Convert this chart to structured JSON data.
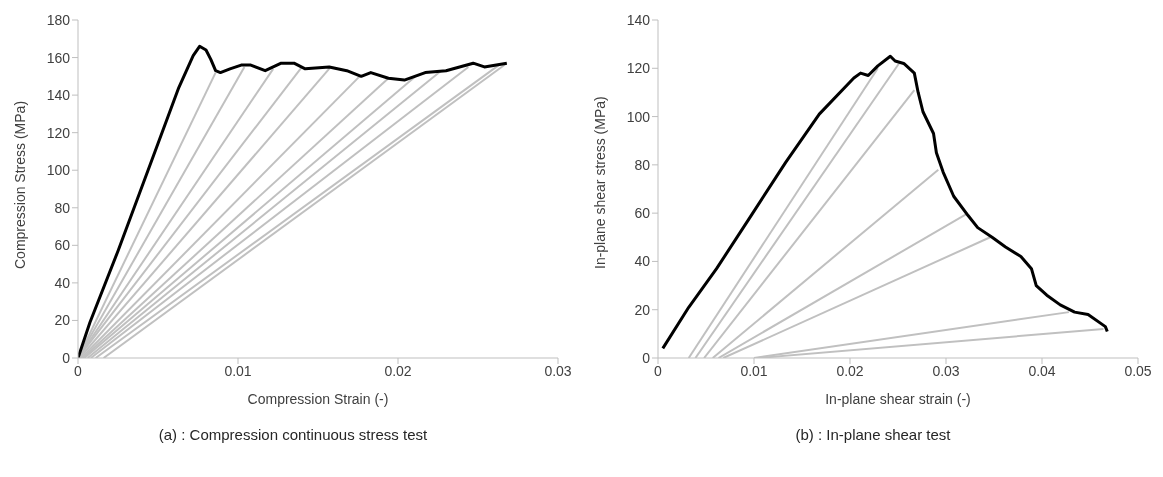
{
  "chart_data": [
    {
      "type": "line",
      "xlabel": "Compression Strain (-)",
      "ylabel": "Compression Stress (MPa)",
      "annotations": [
        "(a) : Compression continuous stress test"
      ],
      "xlim": [
        0,
        0.03
      ],
      "xticks": [
        0,
        0.01,
        0.02,
        0.03
      ],
      "ylim": [
        0,
        180
      ],
      "yticks": [
        0,
        20,
        40,
        60,
        80,
        100,
        120,
        140,
        160,
        180
      ],
      "grid": false,
      "marker": "none",
      "line_style": "solid",
      "series": [
        {
          "color": "#c0c0c0",
          "x": [
            0,
            0.0086
          ],
          "values": [
            0,
            152
          ]
        },
        {
          "color": "#c0c0c0",
          "x": [
            0,
            0.0104
          ],
          "values": [
            0,
            155
          ]
        },
        {
          "color": "#c0c0c0",
          "x": [
            0,
            0.0122
          ],
          "values": [
            0,
            154
          ]
        },
        {
          "color": "#c0c0c0",
          "x": [
            0,
            0.014
          ],
          "values": [
            0,
            155
          ]
        },
        {
          "color": "#c0c0c0",
          "x": [
            0.0001,
            0.0158
          ],
          "values": [
            0,
            155
          ]
        },
        {
          "color": "#c0c0c0",
          "x": [
            0.0002,
            0.0176
          ],
          "values": [
            0,
            150
          ]
        },
        {
          "color": "#c0c0c0",
          "x": [
            0.0003,
            0.0194
          ],
          "values": [
            0,
            149
          ]
        },
        {
          "color": "#c0c0c0",
          "x": [
            0.0004,
            0.0211
          ],
          "values": [
            0,
            150
          ]
        },
        {
          "color": "#c0c0c0",
          "x": [
            0.0006,
            0.0227
          ],
          "values": [
            0,
            153
          ]
        },
        {
          "color": "#c0c0c0",
          "x": [
            0.0008,
            0.0244
          ],
          "values": [
            0,
            155
          ]
        },
        {
          "color": "#c0c0c0",
          "x": [
            0.0011,
            0.0263
          ],
          "values": [
            0,
            156
          ]
        },
        {
          "color": "#c0c0c0",
          "x": [
            0.0016,
            0.0268
          ],
          "values": [
            0,
            157
          ]
        },
        {
          "color": "#000000",
          "x": [
            0,
            0.00075,
            0.0025,
            0.0046,
            0.0063,
            0.0072,
            0.0076,
            0.008,
            0.0083,
            0.0086,
            0.0089,
            0.0095,
            0.0102,
            0.0108,
            0.0117,
            0.0127,
            0.0135,
            0.0142,
            0.0157,
            0.0168,
            0.0177,
            0.0183,
            0.0194,
            0.0204,
            0.0217,
            0.023,
            0.0247,
            0.0254,
            0.0268
          ],
          "values": [
            0,
            19,
            57,
            105,
            144,
            161,
            166,
            164,
            159,
            153,
            152,
            154,
            156,
            156,
            153,
            157,
            157,
            154,
            155,
            153,
            150,
            152,
            149,
            148,
            152,
            153,
            157,
            155,
            157
          ]
        }
      ]
    },
    {
      "type": "line",
      "xlabel": "In-plane shear strain (-)",
      "ylabel": "In-plane shear stress (MPa)",
      "annotations": [
        "(b) : In-plane shear test"
      ],
      "xlim": [
        0,
        0.05
      ],
      "xticks": [
        0,
        0.01,
        0.02,
        0.03,
        0.04,
        0.05
      ],
      "ylim": [
        0,
        140
      ],
      "yticks": [
        0,
        20,
        40,
        60,
        80,
        100,
        120,
        140
      ],
      "grid": false,
      "marker": "none",
      "line_style": "solid",
      "series": [
        {
          "color": "#c0c0c0",
          "x": [
            0.0032,
            0.0229
          ],
          "values": [
            0,
            120
          ]
        },
        {
          "color": "#c0c0c0",
          "x": [
            0.0039,
            0.0251
          ],
          "values": [
            0,
            122
          ]
        },
        {
          "color": "#c0c0c0",
          "x": [
            0.0048,
            0.0267
          ],
          "values": [
            0,
            111
          ]
        },
        {
          "color": "#c0c0c0",
          "x": [
            0.0057,
            0.0292
          ],
          "values": [
            0,
            78
          ]
        },
        {
          "color": "#c0c0c0",
          "x": [
            0.0063,
            0.0323
          ],
          "values": [
            0,
            60
          ]
        },
        {
          "color": "#c0c0c0",
          "x": [
            0.0068,
            0.0346
          ],
          "values": [
            0,
            50
          ]
        },
        {
          "color": "#c0c0c0",
          "x": [
            0.01,
            0.0428
          ],
          "values": [
            0,
            19
          ]
        },
        {
          "color": "#c0c0c0",
          "x": [
            0.0104,
            0.0464
          ],
          "values": [
            0,
            12
          ]
        },
        {
          "color": "#000000",
          "x": [
            0.0005,
            0.0032,
            0.0061,
            0.0097,
            0.0133,
            0.0168,
            0.0204,
            0.0211,
            0.0219,
            0.0229,
            0.0242,
            0.0247,
            0.0256,
            0.0267,
            0.0271,
            0.0276,
            0.0287,
            0.029,
            0.0297,
            0.0308,
            0.0323,
            0.0333,
            0.0348,
            0.0362,
            0.0378,
            0.0389,
            0.0394,
            0.0405,
            0.0419,
            0.0434,
            0.0448,
            0.0466,
            0.0468
          ],
          "values": [
            4,
            21,
            37,
            59,
            81,
            101,
            116,
            118,
            117,
            121,
            125,
            123,
            122,
            118,
            110,
            102,
            93,
            85,
            77,
            67,
            59,
            54,
            50,
            46,
            42,
            37,
            30,
            26,
            22,
            19,
            18,
            13,
            11
          ]
        }
      ]
    }
  ]
}
